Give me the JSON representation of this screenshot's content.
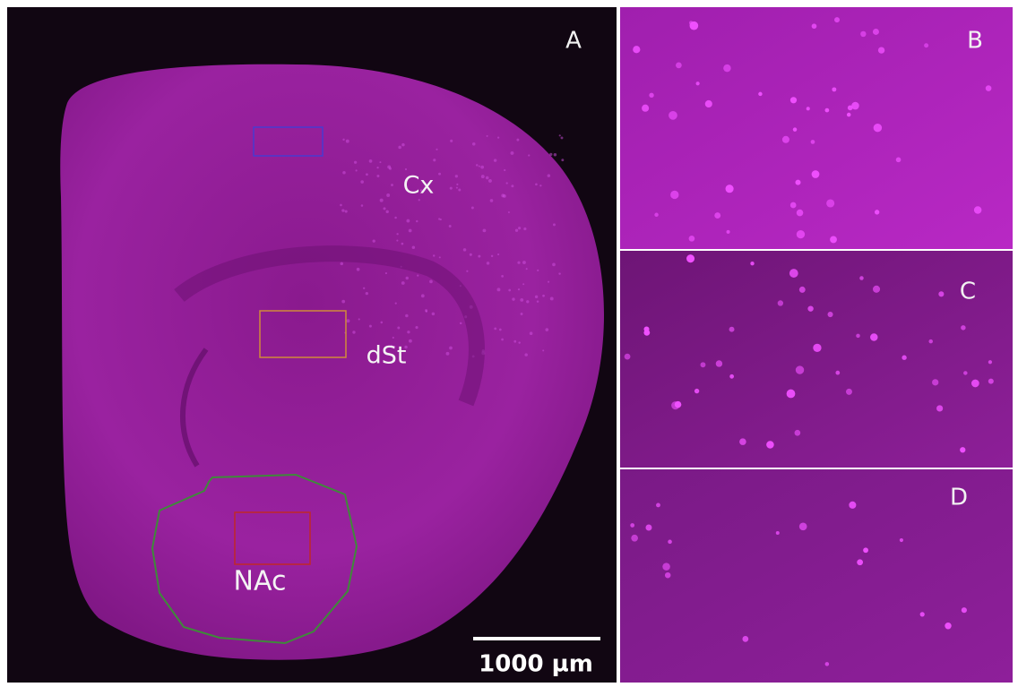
{
  "panel_labels": [
    "A",
    "B",
    "C",
    "D"
  ],
  "regions": [
    "Cx",
    "dSt",
    "NAc"
  ],
  "scale_bar": "1000 µm"
}
